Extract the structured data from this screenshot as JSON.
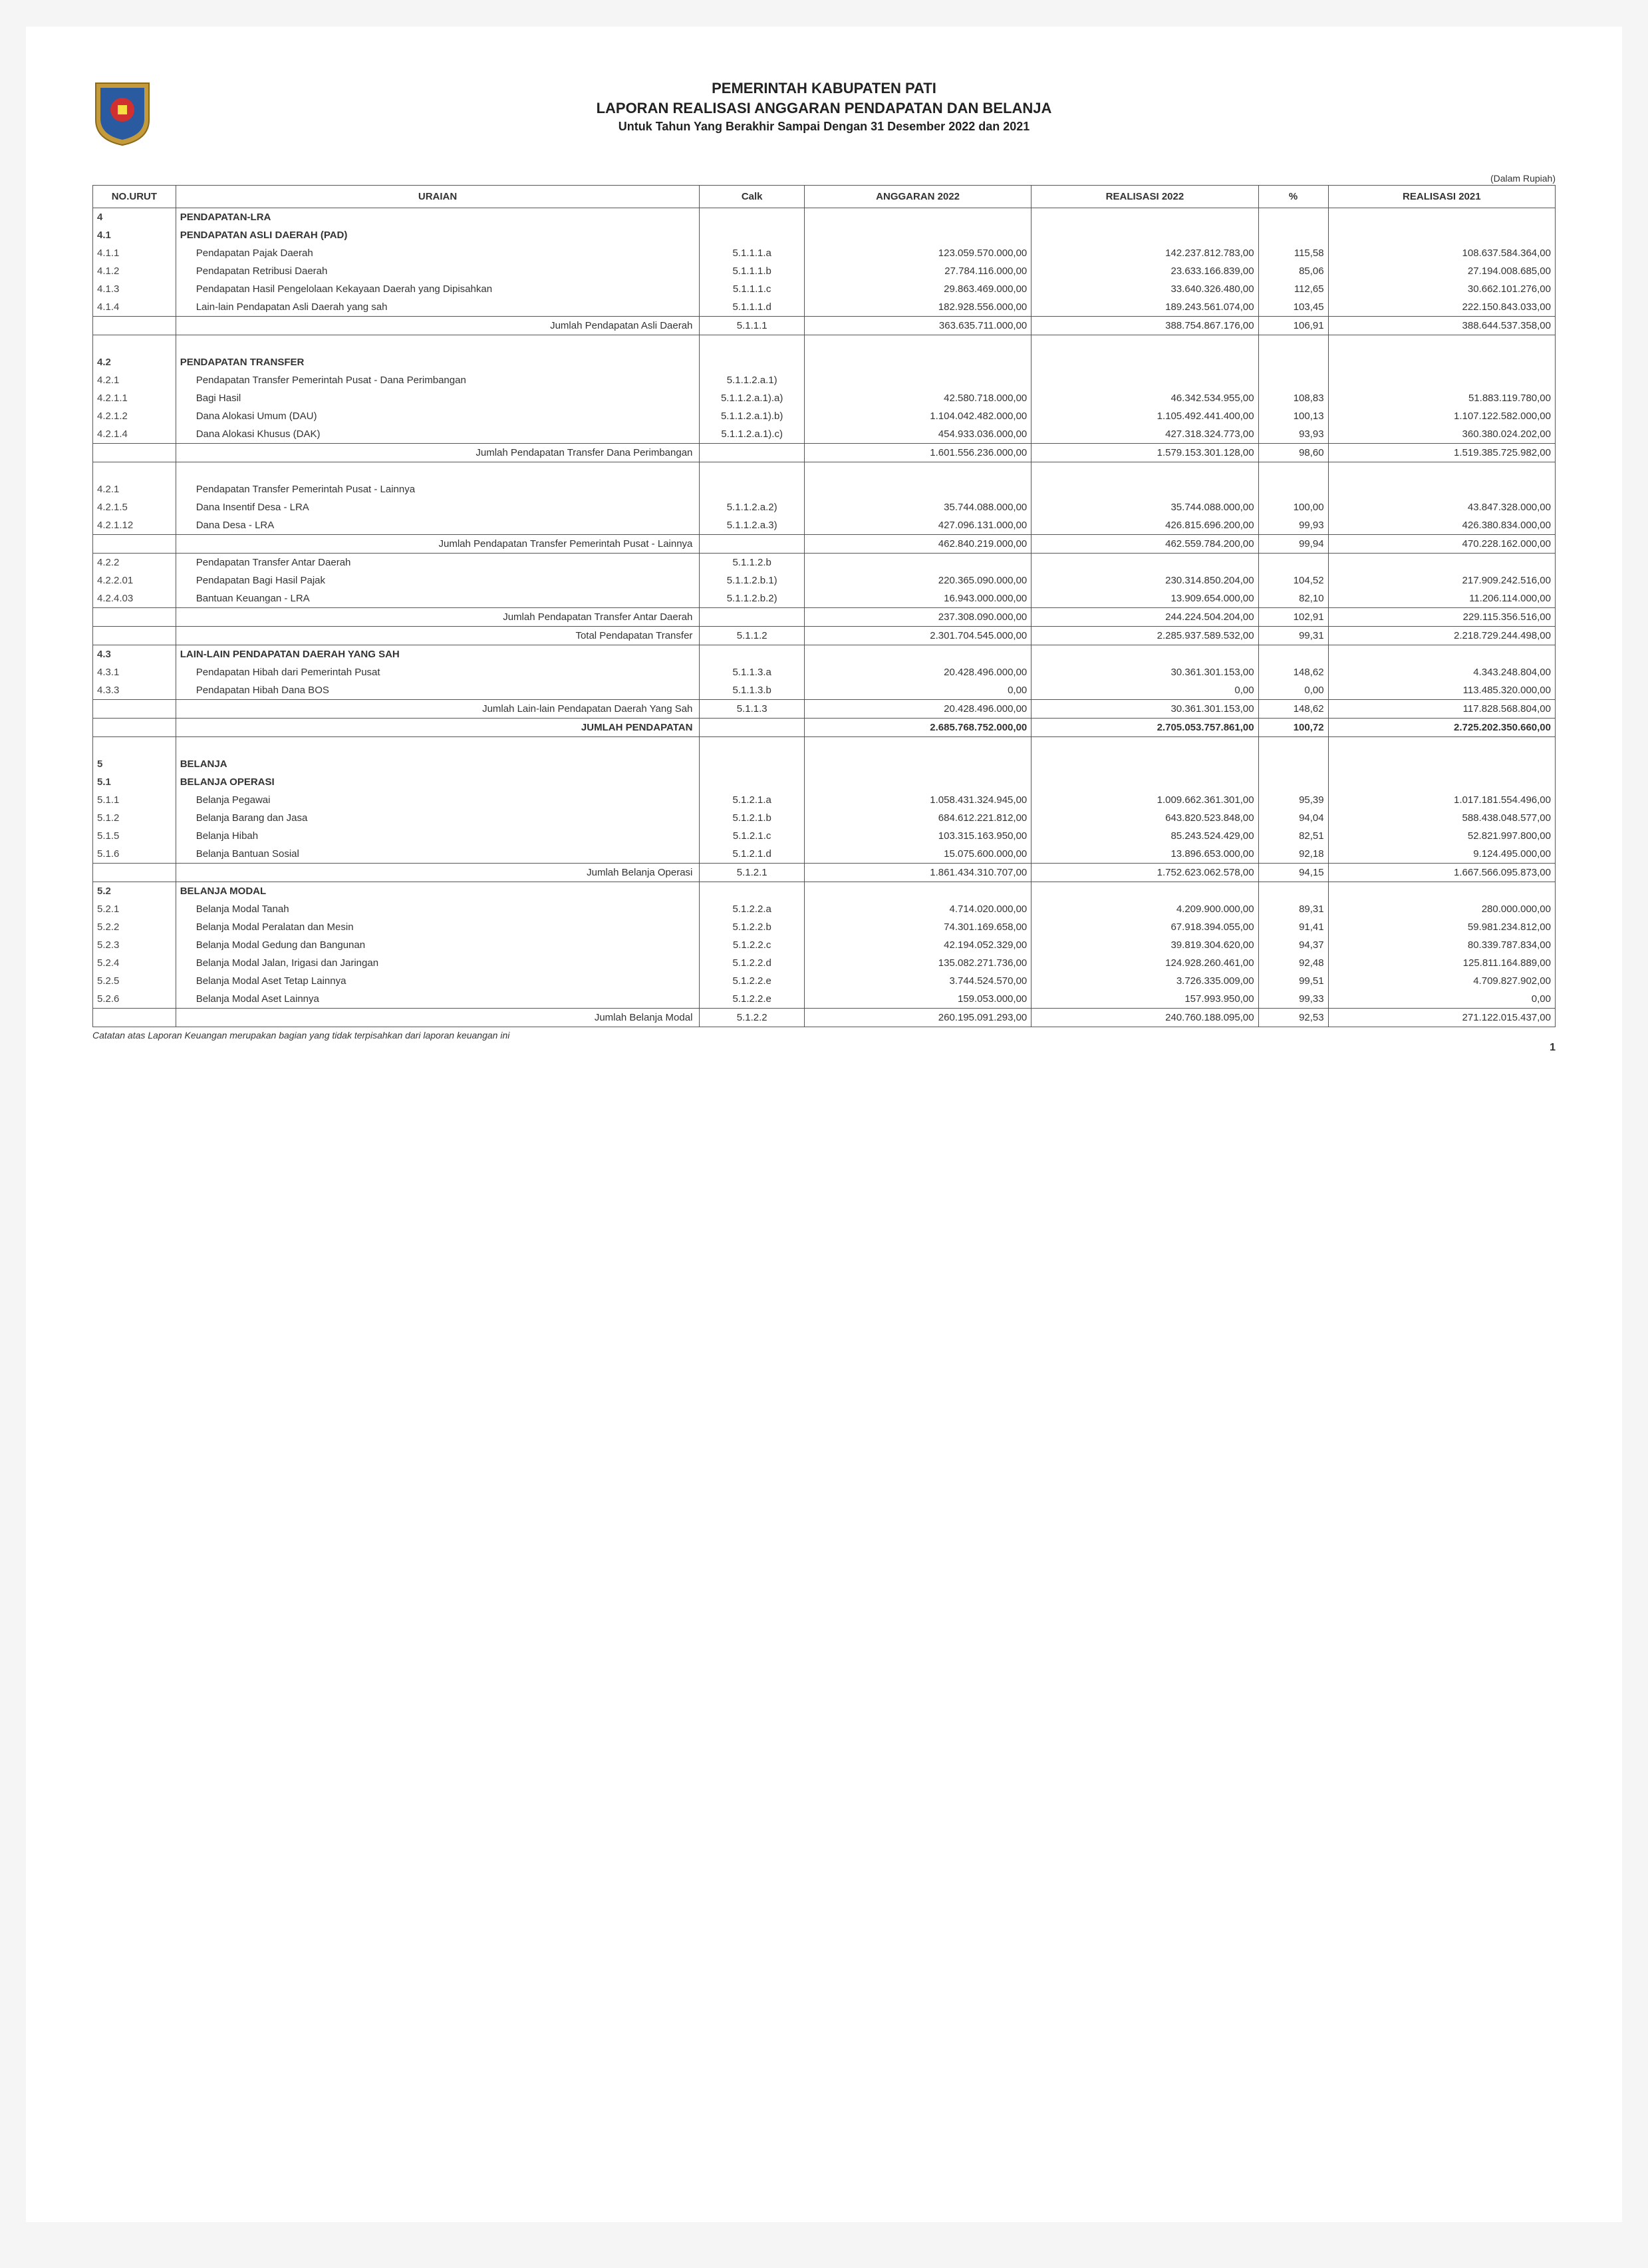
{
  "header": {
    "title1": "PEMERINTAH KABUPATEN PATI",
    "title2": "LAPORAN REALISASI ANGGARAN PENDAPATAN DAN BELANJA",
    "period": "Untuk Tahun Yang Berakhir Sampai Dengan 31 Desember 2022 dan 2021"
  },
  "currency_note": "(Dalam Rupiah)",
  "columns": {
    "no": "NO.URUT",
    "uraian": "URAIAN",
    "calk": "Calk",
    "anggaran": "ANGGARAN 2022",
    "real2022": "REALISASI 2022",
    "pct": "%",
    "real2021": "REALISASI 2021"
  },
  "rows": [
    {
      "type": "section",
      "no": "4",
      "uraian": "PENDAPATAN-LRA"
    },
    {
      "type": "section",
      "no": "4.1",
      "uraian": "PENDAPATAN ASLI DAERAH (PAD)"
    },
    {
      "type": "data",
      "no": "4.1.1",
      "uraian": "Pendapatan Pajak Daerah",
      "calk": "5.1.1.1.a",
      "ang": "123.059.570.000,00",
      "r22": "142.237.812.783,00",
      "pct": "115,58",
      "r21": "108.637.584.364,00"
    },
    {
      "type": "data",
      "no": "4.1.2",
      "uraian": "Pendapatan Retribusi Daerah",
      "calk": "5.1.1.1.b",
      "ang": "27.784.116.000,00",
      "r22": "23.633.166.839,00",
      "pct": "85,06",
      "r21": "27.194.008.685,00"
    },
    {
      "type": "data",
      "no": "4.1.3",
      "uraian": "Pendapatan Hasil Pengelolaan Kekayaan Daerah yang Dipisahkan",
      "calk": "5.1.1.1.c",
      "ang": "29.863.469.000,00",
      "r22": "33.640.326.480,00",
      "pct": "112,65",
      "r21": "30.662.101.276,00"
    },
    {
      "type": "data",
      "no": "4.1.4",
      "uraian": "Lain-lain Pendapatan Asli Daerah yang sah",
      "calk": "5.1.1.1.d",
      "ang": "182.928.556.000,00",
      "r22": "189.243.561.074,00",
      "pct": "103,45",
      "r21": "222.150.843.033,00"
    },
    {
      "type": "subtotal",
      "uraian": "Jumlah Pendapatan Asli Daerah",
      "calk": "5.1.1.1",
      "ang": "363.635.711.000,00",
      "r22": "388.754.867.176,00",
      "pct": "106,91",
      "r21": "388.644.537.358,00"
    },
    {
      "type": "spacer"
    },
    {
      "type": "section",
      "no": "4.2",
      "uraian": "PENDAPATAN TRANSFER"
    },
    {
      "type": "data",
      "no": "4.2.1",
      "uraian": "Pendapatan Transfer Pemerintah Pusat - Dana Perimbangan",
      "calk": "5.1.1.2.a.1)"
    },
    {
      "type": "data",
      "no": "4.2.1.1",
      "uraian": "Bagi Hasil",
      "calk": "5.1.1.2.a.1).a)",
      "ang": "42.580.718.000,00",
      "r22": "46.342.534.955,00",
      "pct": "108,83",
      "r21": "51.883.119.780,00"
    },
    {
      "type": "data",
      "no": "4.2.1.2",
      "uraian": "Dana Alokasi Umum (DAU)",
      "calk": "5.1.1.2.a.1).b)",
      "ang": "1.104.042.482.000,00",
      "r22": "1.105.492.441.400,00",
      "pct": "100,13",
      "r21": "1.107.122.582.000,00"
    },
    {
      "type": "data",
      "no": "4.2.1.4",
      "uraian": "Dana Alokasi Khusus (DAK)",
      "calk": "5.1.1.2.a.1).c)",
      "ang": "454.933.036.000,00",
      "r22": "427.318.324.773,00",
      "pct": "93,93",
      "r21": "360.380.024.202,00"
    },
    {
      "type": "subtotal",
      "uraian": "Jumlah Pendapatan Transfer Dana Perimbangan",
      "ang": "1.601.556.236.000,00",
      "r22": "1.579.153.301.128,00",
      "pct": "98,60",
      "r21": "1.519.385.725.982,00"
    },
    {
      "type": "spacer"
    },
    {
      "type": "data",
      "no": "4.2.1",
      "uraian": "Pendapatan Transfer Pemerintah Pusat - Lainnya"
    },
    {
      "type": "data",
      "no": "4.2.1.5",
      "uraian": "Dana Insentif Desa - LRA",
      "calk": "5.1.1.2.a.2)",
      "ang": "35.744.088.000,00",
      "r22": "35.744.088.000,00",
      "pct": "100,00",
      "r21": "43.847.328.000,00"
    },
    {
      "type": "data",
      "no": "4.2.1.12",
      "uraian": "Dana Desa - LRA",
      "calk": "5.1.1.2.a.3)",
      "ang": "427.096.131.000,00",
      "r22": "426.815.696.200,00",
      "pct": "99,93",
      "r21": "426.380.834.000,00"
    },
    {
      "type": "subtotal",
      "uraian": "Jumlah Pendapatan Transfer Pemerintah Pusat - Lainnya",
      "ang": "462.840.219.000,00",
      "r22": "462.559.784.200,00",
      "pct": "99,94",
      "r21": "470.228.162.000,00"
    },
    {
      "type": "data",
      "no": "4.2.2",
      "uraian": "Pendapatan Transfer Antar Daerah",
      "calk": "5.1.1.2.b"
    },
    {
      "type": "data",
      "no": "4.2.2.01",
      "uraian": "Pendapatan Bagi Hasil Pajak",
      "calk": "5.1.1.2.b.1)",
      "ang": "220.365.090.000,00",
      "r22": "230.314.850.204,00",
      "pct": "104,52",
      "r21": "217.909.242.516,00"
    },
    {
      "type": "data",
      "no": "4.2.4.03",
      "uraian": "Bantuan Keuangan - LRA",
      "calk": "5.1.1.2.b.2)",
      "ang": "16.943.000.000,00",
      "r22": "13.909.654.000,00",
      "pct": "82,10",
      "r21": "11.206.114.000,00"
    },
    {
      "type": "subtotal",
      "uraian": "Jumlah Pendapatan Transfer Antar Daerah",
      "ang": "237.308.090.000,00",
      "r22": "244.224.504.204,00",
      "pct": "102,91",
      "r21": "229.115.356.516,00"
    },
    {
      "type": "subtotal",
      "uraian": "Total Pendapatan Transfer",
      "calk": "5.1.1.2",
      "ang": "2.301.704.545.000,00",
      "r22": "2.285.937.589.532,00",
      "pct": "99,31",
      "r21": "2.218.729.244.498,00"
    },
    {
      "type": "section",
      "no": "4.3",
      "uraian": "LAIN-LAIN PENDAPATAN DAERAH YANG SAH"
    },
    {
      "type": "data",
      "no": "4.3.1",
      "uraian": "Pendapatan Hibah dari Pemerintah Pusat",
      "calk": "5.1.1.3.a",
      "ang": "20.428.496.000,00",
      "r22": "30.361.301.153,00",
      "pct": "148,62",
      "r21": "4.343.248.804,00"
    },
    {
      "type": "data",
      "no": "4.3.3",
      "uraian": "Pendapatan Hibah Dana BOS",
      "calk": "5.1.1.3.b",
      "ang": "0,00",
      "r22": "0,00",
      "pct": "0,00",
      "r21": "113.485.320.000,00"
    },
    {
      "type": "subtotal",
      "uraian": "Jumlah Lain-lain Pendapatan Daerah Yang Sah",
      "calk": "5.1.1.3",
      "ang": "20.428.496.000,00",
      "r22": "30.361.301.153,00",
      "pct": "148,62",
      "r21": "117.828.568.804,00"
    },
    {
      "type": "grand",
      "uraian": "JUMLAH PENDAPATAN",
      "ang": "2.685.768.752.000,00",
      "r22": "2.705.053.757.861,00",
      "pct": "100,72",
      "r21": "2.725.202.350.660,00"
    },
    {
      "type": "spacer"
    },
    {
      "type": "section",
      "no": "5",
      "uraian": "BELANJA"
    },
    {
      "type": "section",
      "no": "5.1",
      "uraian": "BELANJA OPERASI"
    },
    {
      "type": "data",
      "no": "5.1.1",
      "uraian": "Belanja Pegawai",
      "calk": "5.1.2.1.a",
      "ang": "1.058.431.324.945,00",
      "r22": "1.009.662.361.301,00",
      "pct": "95,39",
      "r21": "1.017.181.554.496,00"
    },
    {
      "type": "data",
      "no": "5.1.2",
      "uraian": "Belanja Barang dan Jasa",
      "calk": "5.1.2.1.b",
      "ang": "684.612.221.812,00",
      "r22": "643.820.523.848,00",
      "pct": "94,04",
      "r21": "588.438.048.577,00"
    },
    {
      "type": "data",
      "no": "5.1.5",
      "uraian": "Belanja Hibah",
      "calk": "5.1.2.1.c",
      "ang": "103.315.163.950,00",
      "r22": "85.243.524.429,00",
      "pct": "82,51",
      "r21": "52.821.997.800,00"
    },
    {
      "type": "data",
      "no": "5.1.6",
      "uraian": "Belanja Bantuan Sosial",
      "calk": "5.1.2.1.d",
      "ang": "15.075.600.000,00",
      "r22": "13.896.653.000,00",
      "pct": "92,18",
      "r21": "9.124.495.000,00"
    },
    {
      "type": "subtotal",
      "uraian": "Jumlah Belanja Operasi",
      "calk": "5.1.2.1",
      "ang": "1.861.434.310.707,00",
      "r22": "1.752.623.062.578,00",
      "pct": "94,15",
      "r21": "1.667.566.095.873,00"
    },
    {
      "type": "section",
      "no": "5.2",
      "uraian": "BELANJA MODAL"
    },
    {
      "type": "data",
      "no": "5.2.1",
      "uraian": "Belanja Modal Tanah",
      "calk": "5.1.2.2.a",
      "ang": "4.714.020.000,00",
      "r22": "4.209.900.000,00",
      "pct": "89,31",
      "r21": "280.000.000,00"
    },
    {
      "type": "data",
      "no": "5.2.2",
      "uraian": "Belanja Modal Peralatan dan Mesin",
      "calk": "5.1.2.2.b",
      "ang": "74.301.169.658,00",
      "r22": "67.918.394.055,00",
      "pct": "91,41",
      "r21": "59.981.234.812,00"
    },
    {
      "type": "data",
      "no": "5.2.3",
      "uraian": "Belanja Modal Gedung dan Bangunan",
      "calk": "5.1.2.2.c",
      "ang": "42.194.052.329,00",
      "r22": "39.819.304.620,00",
      "pct": "94,37",
      "r21": "80.339.787.834,00"
    },
    {
      "type": "data",
      "no": "5.2.4",
      "uraian": "Belanja Modal Jalan, Irigasi dan Jaringan",
      "calk": "5.1.2.2.d",
      "ang": "135.082.271.736,00",
      "r22": "124.928.260.461,00",
      "pct": "92,48",
      "r21": "125.811.164.889,00"
    },
    {
      "type": "data",
      "no": "5.2.5",
      "uraian": "Belanja Modal Aset Tetap Lainnya",
      "calk": "5.1.2.2.e",
      "ang": "3.744.524.570,00",
      "r22": "3.726.335.009,00",
      "pct": "99,51",
      "r21": "4.709.827.902,00"
    },
    {
      "type": "data",
      "no": "5.2.6",
      "uraian": "Belanja Modal Aset Lainnya",
      "calk": "5.1.2.2.e",
      "ang": "159.053.000,00",
      "r22": "157.993.950,00",
      "pct": "99,33",
      "r21": "0,00"
    },
    {
      "type": "subtotal-last",
      "uraian": "Jumlah Belanja Modal",
      "calk": "5.1.2.2",
      "ang": "260.195.091.293,00",
      "r22": "240.760.188.095,00",
      "pct": "92,53",
      "r21": "271.122.015.437,00"
    }
  ],
  "footnote": "Catatan atas Laporan Keuangan merupakan bagian yang tidak terpisahkan dari laporan keuangan ini",
  "page_number": "1",
  "logo_colors": {
    "outer": "#c49a3a",
    "inner": "#2a5aa0",
    "center": "#d03030"
  }
}
